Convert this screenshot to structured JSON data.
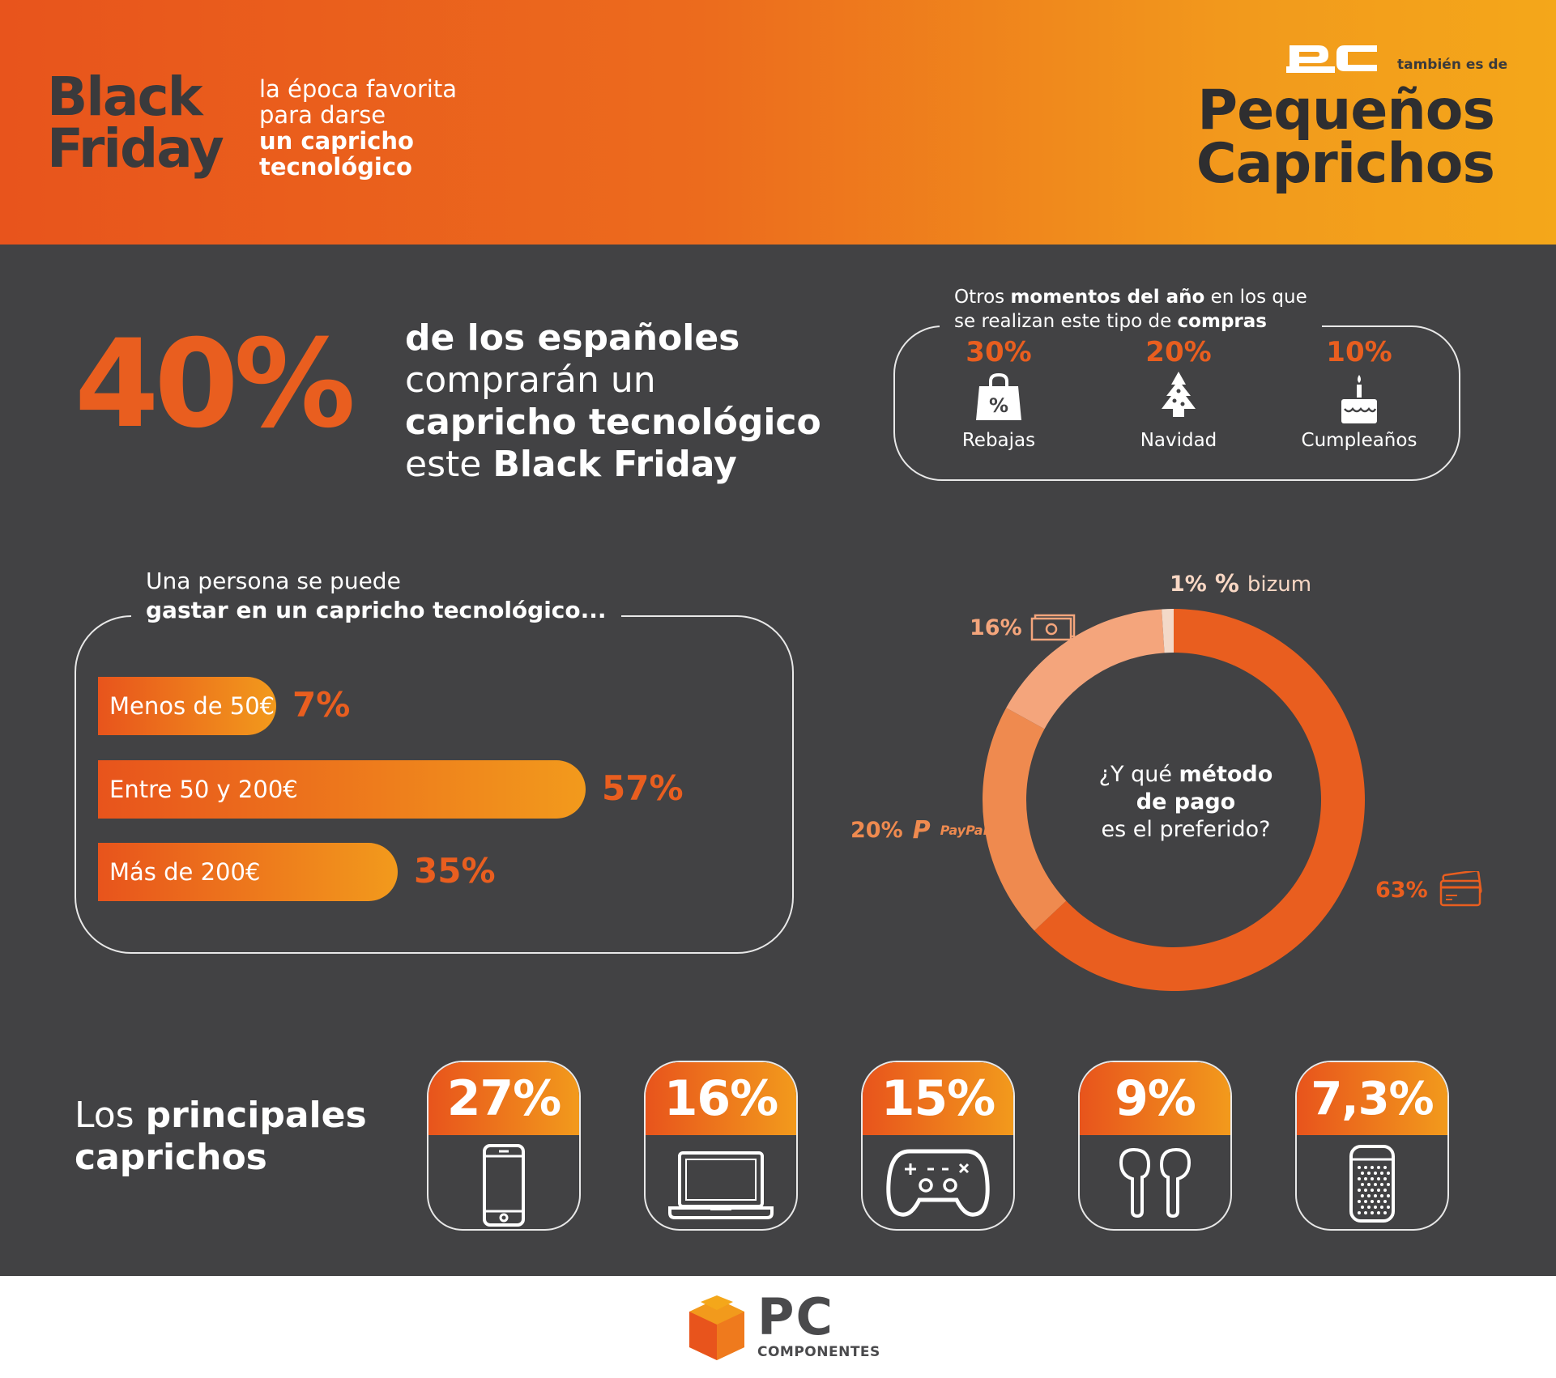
{
  "header": {
    "black_friday_line1": "Black",
    "black_friday_line2": "Friday",
    "sub_line1": "la época favorita",
    "sub_line2": "para darse",
    "sub_line3": "un capricho",
    "sub_line4": "tecnológico",
    "brand_note": "también es de",
    "campaign_line1": "Pequeños",
    "campaign_line2": "Caprichos"
  },
  "headline": {
    "big_value": "40%",
    "line1": "de los españoles",
    "line2": "comprarán un",
    "line3": "capricho tecnológico",
    "line4_plain": "este ",
    "line4_bold": "Black Friday"
  },
  "moments": {
    "title_a": "Otros ",
    "title_b": "momentos del año",
    "title_c": " en los que",
    "title_d": "se realizan este tipo de ",
    "title_e": "compras",
    "items": [
      {
        "pct": "30%",
        "label": "Rebajas",
        "icon": "shopping-bag-icon"
      },
      {
        "pct": "20%",
        "label": "Navidad",
        "icon": "christmas-tree-icon"
      },
      {
        "pct": "10%",
        "label": "Cumpleaños",
        "icon": "birthday-cake-icon"
      }
    ]
  },
  "spend": {
    "title_line1": "Una persona se puede",
    "title_line2": "gastar en un capricho tecnológico..."
  },
  "donut": {
    "center_a": "¿Y qué ",
    "center_b": "método",
    "center_c": "de pago",
    "center_d": "es el preferido?",
    "bizum_label": "bizum",
    "paypal_label": "PayPal"
  },
  "caprichos": {
    "title_plain": "Los ",
    "title_bold1": "principales",
    "title_bold2": "caprichos",
    "items": [
      {
        "value": "27%",
        "icon": "smartphone-icon"
      },
      {
        "value": "16%",
        "icon": "laptop-icon"
      },
      {
        "value": "15%",
        "icon": "gamepad-icon"
      },
      {
        "value": "9%",
        "icon": "earbuds-icon"
      },
      {
        "value": "7,3%",
        "icon": "smart-speaker-icon"
      }
    ]
  },
  "footer": {
    "logo_text": "PC",
    "logo_sub": "COMPONENTES"
  },
  "colors": {
    "orange": "#e95e1f",
    "orange_light": "#ef8a4f",
    "orange_pale": "#f4a57c",
    "dark_bg": "#424244"
  },
  "chart_data": [
    {
      "type": "bar",
      "categories": [
        "Menos de 50€",
        "Entre 50 y 200€",
        "Más de 200€"
      ],
      "values": [
        7,
        57,
        35
      ],
      "value_labels": [
        "7%",
        "57%",
        "35%"
      ],
      "title": "Una persona se puede gastar en un capricho tecnológico..."
    },
    {
      "type": "pie",
      "categories": [
        "Tarjeta",
        "PayPal",
        "Efectivo",
        "Bizum"
      ],
      "values": [
        63,
        20,
        16,
        1
      ],
      "value_labels": [
        "63%",
        "20%",
        "16%",
        "1%"
      ],
      "colors": [
        "#e95e1f",
        "#ef8a4f",
        "#f4a57c",
        "#f3d9c8"
      ],
      "title": "¿Y qué método de pago es el preferido?"
    }
  ]
}
